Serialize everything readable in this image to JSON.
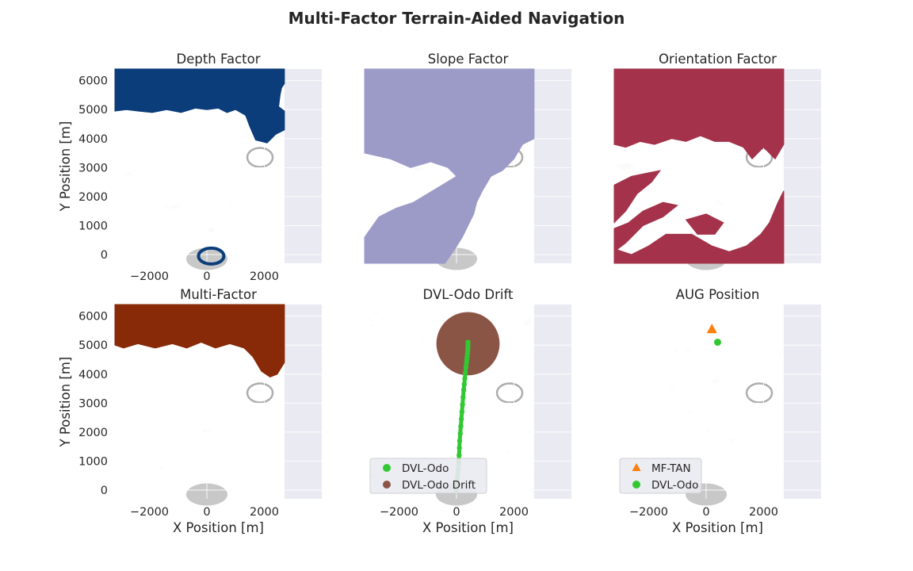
{
  "title": "Multi-Factor Terrain-Aided Navigation",
  "colors": {
    "axes_bg": "#eaeaf2",
    "grid": "#ffffff",
    "depth": "#0b3d7a",
    "slope": "#9c9bc8",
    "orientation": "#a3324a",
    "multi": "#882a08",
    "dvl_odo": "#32c832",
    "drift": "#8b5546",
    "mf_tan": "#ff7f0e"
  },
  "chart_data": [
    {
      "type": "heatmap",
      "title": "Depth Factor",
      "xlabel": "",
      "ylabel": "Y Position [m]",
      "xlim": [
        -3200,
        4000
      ],
      "ylim": [
        -300,
        6400
      ],
      "xticks": [
        "−2000",
        "0",
        "2000"
      ],
      "yticks": [
        "0",
        "1000",
        "2000",
        "3000",
        "4000",
        "5000",
        "6000"
      ],
      "terrain_extent_x": [
        -3200,
        2700
      ],
      "highlight": "depth"
    },
    {
      "type": "heatmap",
      "title": "Slope Factor",
      "xlabel": "",
      "ylabel": "",
      "xlim": [
        -3200,
        4000
      ],
      "ylim": [
        -300,
        6400
      ],
      "terrain_extent_x": [
        -3200,
        2700
      ],
      "highlight": "slope"
    },
    {
      "type": "heatmap",
      "title": "Orientation Factor",
      "xlabel": "",
      "ylabel": "",
      "xlim": [
        -3200,
        4000
      ],
      "ylim": [
        -300,
        6400
      ],
      "terrain_extent_x": [
        -3200,
        2700
      ],
      "highlight": "orientation"
    },
    {
      "type": "heatmap",
      "title": "Multi-Factor",
      "xlabel": "X Position [m]",
      "ylabel": "Y Position [m]",
      "xlim": [
        -3200,
        4000
      ],
      "ylim": [
        -300,
        6400
      ],
      "xticks": [
        "−2000",
        "0",
        "2000"
      ],
      "yticks": [
        "0",
        "1000",
        "2000",
        "3000",
        "4000",
        "5000",
        "6000"
      ],
      "terrain_extent_x": [
        -3200,
        2700
      ],
      "highlight": "multi"
    },
    {
      "type": "scatter",
      "title": "DVL-Odo Drift",
      "xlabel": "X Position [m]",
      "ylabel": "",
      "xlim": [
        -3200,
        4000
      ],
      "ylim": [
        -300,
        6400
      ],
      "xticks": [
        "−2000",
        "0",
        "2000"
      ],
      "terrain_extent_x": [
        -3200,
        2700
      ],
      "series": [
        {
          "name": "DVL-Odo",
          "x": [
            0,
            10,
            30,
            60,
            80,
            90,
            100,
            110,
            130,
            150,
            170,
            190,
            210,
            230,
            250,
            270,
            290,
            310,
            330,
            350,
            360,
            370,
            380,
            390,
            395,
            400,
            400
          ],
          "y": [
            0,
            200,
            450,
            700,
            950,
            1200,
            1450,
            1700,
            1950,
            2200,
            2450,
            2700,
            2950,
            3200,
            3450,
            3650,
            3850,
            4050,
            4250,
            4400,
            4500,
            4600,
            4700,
            4800,
            4900,
            5000,
            5100
          ]
        },
        {
          "name": "DVL-Odo Drift",
          "center": [
            400,
            5050
          ],
          "radius": 1100
        }
      ],
      "legend": {
        "placement": "lower-left",
        "entries": [
          "DVL-Odo",
          "DVL-Odo Drift"
        ]
      }
    },
    {
      "type": "scatter",
      "title": "AUG Position",
      "xlabel": "X Position [m]",
      "ylabel": "",
      "xlim": [
        -3200,
        4000
      ],
      "ylim": [
        -300,
        6400
      ],
      "xticks": [
        "−2000",
        "0",
        "2000"
      ],
      "terrain_extent_x": [
        -3200,
        2700
      ],
      "series": [
        {
          "name": "MF-TAN",
          "x": [
            200
          ],
          "y": [
            5550
          ]
        },
        {
          "name": "DVL-Odo",
          "x": [
            400
          ],
          "y": [
            5100
          ]
        }
      ],
      "legend": {
        "placement": "lower-left",
        "entries": [
          "MF-TAN",
          "DVL-Odo"
        ]
      }
    }
  ]
}
